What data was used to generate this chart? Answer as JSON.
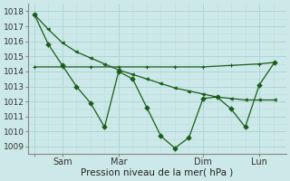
{
  "xlabel": "Pression niveau de la mer( hPa )",
  "background_color": "#cce8e8",
  "grid_color": "#aad4d4",
  "subgrid_color": "#bbdede",
  "line_color": "#1a5c1a",
  "ylim": [
    1008.5,
    1018.5
  ],
  "yticks": [
    1009,
    1010,
    1011,
    1012,
    1013,
    1014,
    1015,
    1016,
    1017,
    1018
  ],
  "xtick_positions": [
    0,
    48,
    144,
    288,
    384
  ],
  "xtick_labels": [
    "",
    "Sam",
    "Mar",
    "Dim",
    "Lun"
  ],
  "xlim": [
    -10,
    430
  ],
  "vline_positions": [
    0,
    48,
    144,
    288,
    384
  ],
  "line_flat_x": [
    0,
    48,
    96,
    144,
    192,
    240,
    288,
    336,
    384,
    410
  ],
  "line_flat_y": [
    1014.3,
    1014.3,
    1014.3,
    1014.3,
    1014.3,
    1014.3,
    1014.3,
    1014.4,
    1014.5,
    1014.6
  ],
  "line_diag_x": [
    0,
    24,
    48,
    72,
    96,
    120,
    144,
    168,
    192,
    216,
    240,
    264,
    288,
    312,
    336,
    360,
    384,
    410
  ],
  "line_diag_y": [
    1017.8,
    1016.8,
    1015.9,
    1015.3,
    1014.9,
    1014.5,
    1014.1,
    1013.8,
    1013.5,
    1013.2,
    1012.9,
    1012.7,
    1012.5,
    1012.3,
    1012.2,
    1012.1,
    1012.1,
    1012.1
  ],
  "line_jagged_x": [
    0,
    24,
    48,
    72,
    96,
    120,
    144,
    168,
    192,
    216,
    240,
    264,
    288,
    312,
    336,
    360,
    384,
    410
  ],
  "line_jagged_y": [
    1017.8,
    1015.8,
    1014.4,
    1013.0,
    1011.9,
    1010.3,
    1014.0,
    1013.5,
    1011.6,
    1009.7,
    1008.9,
    1009.6,
    1012.2,
    1012.3,
    1011.5,
    1010.3,
    1013.1,
    1014.6
  ],
  "line_jagged_marker_x": [
    0,
    48,
    72,
    96,
    120,
    144,
    168,
    192,
    216,
    240,
    264,
    288,
    312,
    336,
    360,
    384,
    410
  ],
  "line_jagged_marker_y": [
    1017.8,
    1014.4,
    1013.0,
    1011.9,
    1010.3,
    1014.0,
    1013.5,
    1011.6,
    1009.7,
    1008.9,
    1009.6,
    1012.2,
    1012.3,
    1011.5,
    1010.3,
    1013.1,
    1014.6
  ]
}
